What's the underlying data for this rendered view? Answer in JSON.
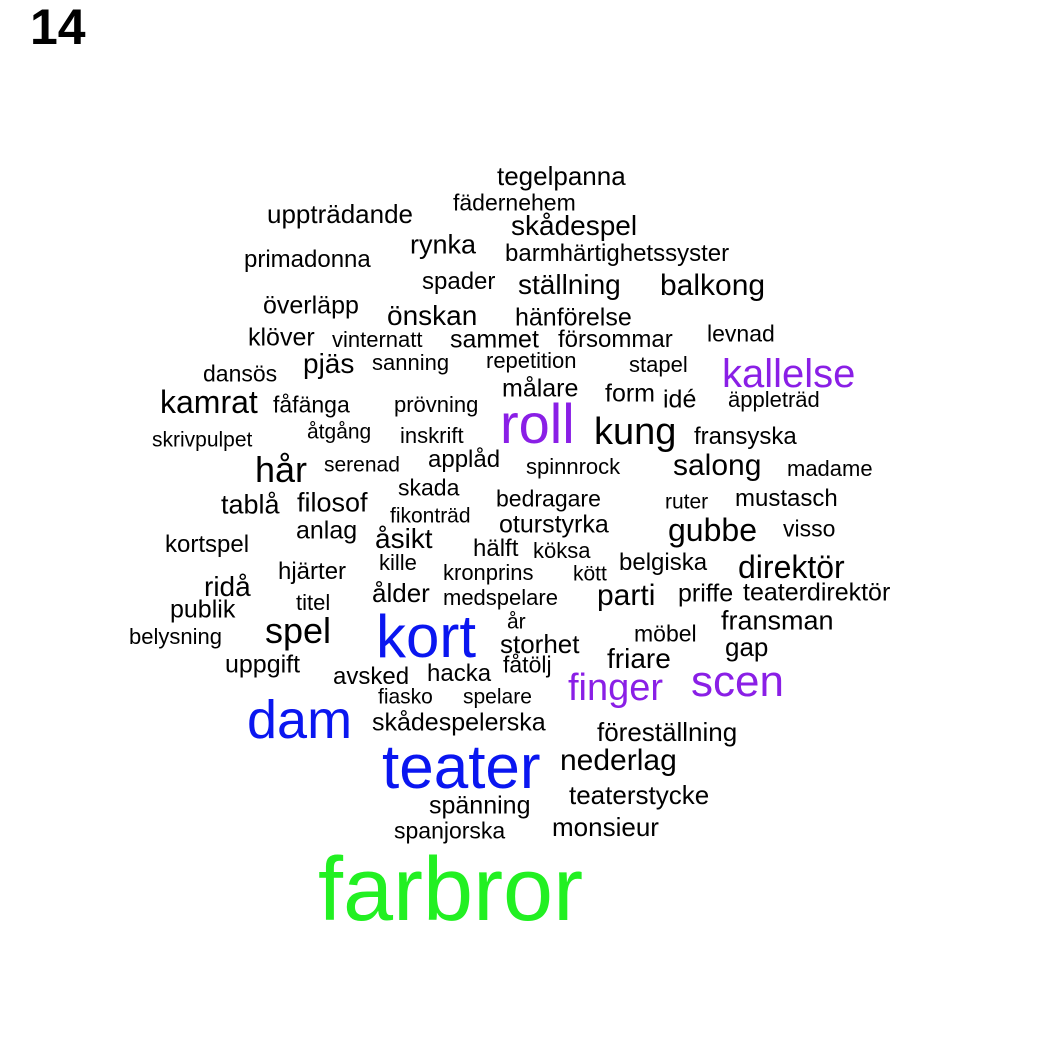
{
  "page_number": "14",
  "colors": {
    "default": "#000000",
    "purple": "#8a1fe6",
    "blue": "#0a16f0",
    "green": "#22f022"
  },
  "words": [
    {
      "text": "tegelpanna",
      "weight": 1,
      "color": "default"
    },
    {
      "text": "fädernehem",
      "weight": 0.7,
      "color": "default"
    },
    {
      "text": "uppträdande",
      "weight": 1,
      "color": "default"
    },
    {
      "text": "skådespel",
      "weight": 1.2,
      "color": "default"
    },
    {
      "text": "rynka",
      "weight": 1.1,
      "color": "default"
    },
    {
      "text": "barmhärtighetssyster",
      "weight": 1,
      "color": "default"
    },
    {
      "text": "primadonna",
      "weight": 0.9,
      "color": "default"
    },
    {
      "text": "spader",
      "weight": 0.9,
      "color": "default"
    },
    {
      "text": "ställning",
      "weight": 1.2,
      "color": "default"
    },
    {
      "text": "balkong",
      "weight": 1.2,
      "color": "default"
    },
    {
      "text": "överläpp",
      "weight": 0.9,
      "color": "default"
    },
    {
      "text": "önskan",
      "weight": 1.1,
      "color": "default"
    },
    {
      "text": "hänförelse",
      "weight": 0.9,
      "color": "default"
    },
    {
      "text": "klöver",
      "weight": 1,
      "color": "default"
    },
    {
      "text": "vinternatt",
      "weight": 0.8,
      "color": "default"
    },
    {
      "text": "sammet",
      "weight": 1,
      "color": "default"
    },
    {
      "text": "försommar",
      "weight": 0.9,
      "color": "default"
    },
    {
      "text": "levnad",
      "weight": 0.8,
      "color": "default"
    },
    {
      "text": "pjäs",
      "weight": 1.2,
      "color": "default"
    },
    {
      "text": "sanning",
      "weight": 0.8,
      "color": "default"
    },
    {
      "text": "repetition",
      "weight": 0.8,
      "color": "default"
    },
    {
      "text": "stapel",
      "weight": 0.8,
      "color": "default"
    },
    {
      "text": "dansös",
      "weight": 0.8,
      "color": "default"
    },
    {
      "text": "kallelse",
      "weight": 1.6,
      "color": "purple"
    },
    {
      "text": "målare",
      "weight": 0.9,
      "color": "default"
    },
    {
      "text": "form",
      "weight": 0.9,
      "color": "default"
    },
    {
      "text": "kamrat",
      "weight": 1.3,
      "color": "default"
    },
    {
      "text": "fåfänga",
      "weight": 0.9,
      "color": "default"
    },
    {
      "text": "prövning",
      "weight": 0.8,
      "color": "default"
    },
    {
      "text": "roll",
      "weight": 2.5,
      "color": "purple"
    },
    {
      "text": "idé",
      "weight": 0.9,
      "color": "default"
    },
    {
      "text": "äppleträd",
      "weight": 0.8,
      "color": "default"
    },
    {
      "text": "åtgång",
      "weight": 0.8,
      "color": "default"
    },
    {
      "text": "inskrift",
      "weight": 0.8,
      "color": "default"
    },
    {
      "text": "kung",
      "weight": 1.6,
      "color": "default"
    },
    {
      "text": "fransyska",
      "weight": 0.9,
      "color": "default"
    },
    {
      "text": "skrivpulpet",
      "weight": 0.8,
      "color": "default"
    },
    {
      "text": "hår",
      "weight": 1.5,
      "color": "default"
    },
    {
      "text": "serenad",
      "weight": 0.9,
      "color": "default"
    },
    {
      "text": "applåd",
      "weight": 0.9,
      "color": "default"
    },
    {
      "text": "spinnrock",
      "weight": 0.9,
      "color": "default"
    },
    {
      "text": "salong",
      "weight": 1.2,
      "color": "default"
    },
    {
      "text": "madame",
      "weight": 0.9,
      "color": "default"
    },
    {
      "text": "skada",
      "weight": 0.9,
      "color": "default"
    },
    {
      "text": "tablå",
      "weight": 1.1,
      "color": "default"
    },
    {
      "text": "filosof",
      "weight": 1.1,
      "color": "default"
    },
    {
      "text": "bedragare",
      "weight": 0.9,
      "color": "default"
    },
    {
      "text": "ruter",
      "weight": 0.8,
      "color": "default"
    },
    {
      "text": "mustasch",
      "weight": 0.9,
      "color": "default"
    },
    {
      "text": "fikonträd",
      "weight": 0.8,
      "color": "default"
    },
    {
      "text": "oturstyrka",
      "weight": 1,
      "color": "default"
    },
    {
      "text": "anlag",
      "weight": 1,
      "color": "default"
    },
    {
      "text": "gubbe",
      "weight": 1.3,
      "color": "default"
    },
    {
      "text": "visso",
      "weight": 0.9,
      "color": "default"
    },
    {
      "text": "åsikt",
      "weight": 1.1,
      "color": "default"
    },
    {
      "text": "kortspel",
      "weight": 0.9,
      "color": "default"
    },
    {
      "text": "hälft",
      "weight": 0.9,
      "color": "default"
    },
    {
      "text": "köksa",
      "weight": 0.8,
      "color": "default"
    },
    {
      "text": "kille",
      "weight": 0.8,
      "color": "default"
    },
    {
      "text": "belgiska",
      "weight": 0.9,
      "color": "default"
    },
    {
      "text": "direktör",
      "weight": 1.3,
      "color": "default"
    },
    {
      "text": "hjärter",
      "weight": 0.9,
      "color": "default"
    },
    {
      "text": "kronprins",
      "weight": 0.9,
      "color": "default"
    },
    {
      "text": "kött",
      "weight": 0.8,
      "color": "default"
    },
    {
      "text": "ridå",
      "weight": 1.1,
      "color": "default"
    },
    {
      "text": "ålder",
      "weight": 1,
      "color": "default"
    },
    {
      "text": "medspelare",
      "weight": 0.9,
      "color": "default"
    },
    {
      "text": "parti",
      "weight": 1.1,
      "color": "default"
    },
    {
      "text": "priffe",
      "weight": 0.9,
      "color": "default"
    },
    {
      "text": "teaterdirektör",
      "weight": 0.9,
      "color": "default"
    },
    {
      "text": "publik",
      "weight": 1,
      "color": "default"
    },
    {
      "text": "titel",
      "weight": 0.8,
      "color": "default"
    },
    {
      "text": "år",
      "weight": 0.8,
      "color": "default"
    },
    {
      "text": "fransman",
      "weight": 1,
      "color": "default"
    },
    {
      "text": "spel",
      "weight": 1.4,
      "color": "default"
    },
    {
      "text": "kort",
      "weight": 2.6,
      "color": "blue"
    },
    {
      "text": "belysning",
      "weight": 0.8,
      "color": "default"
    },
    {
      "text": "storhet",
      "weight": 1,
      "color": "default"
    },
    {
      "text": "möbel",
      "weight": 0.8,
      "color": "default"
    },
    {
      "text": "gap",
      "weight": 1,
      "color": "default"
    },
    {
      "text": "friare",
      "weight": 1.1,
      "color": "default"
    },
    {
      "text": "uppgift",
      "weight": 1,
      "color": "default"
    },
    {
      "text": "fåtölj",
      "weight": 0.9,
      "color": "default"
    },
    {
      "text": "avsked",
      "weight": 0.9,
      "color": "default"
    },
    {
      "text": "hacka",
      "weight": 0.9,
      "color": "default"
    },
    {
      "text": "finger",
      "weight": 1.6,
      "color": "purple"
    },
    {
      "text": "scen",
      "weight": 1.8,
      "color": "purple"
    },
    {
      "text": "fiasko",
      "weight": 0.8,
      "color": "default"
    },
    {
      "text": "spelare",
      "weight": 0.8,
      "color": "default"
    },
    {
      "text": "dam",
      "weight": 2.3,
      "color": "blue"
    },
    {
      "text": "skådespelerska",
      "weight": 1,
      "color": "default"
    },
    {
      "text": "föreställning",
      "weight": 1,
      "color": "default"
    },
    {
      "text": "teater",
      "weight": 2.6,
      "color": "blue"
    },
    {
      "text": "nederlag",
      "weight": 1.1,
      "color": "default"
    },
    {
      "text": "teaterstycke",
      "weight": 1,
      "color": "default"
    },
    {
      "text": "spänning",
      "weight": 0.9,
      "color": "default"
    },
    {
      "text": "monsieur",
      "weight": 1,
      "color": "default"
    },
    {
      "text": "spanjorska",
      "weight": 0.8,
      "color": "default"
    },
    {
      "text": "farbror",
      "weight": 4.5,
      "color": "green"
    }
  ]
}
